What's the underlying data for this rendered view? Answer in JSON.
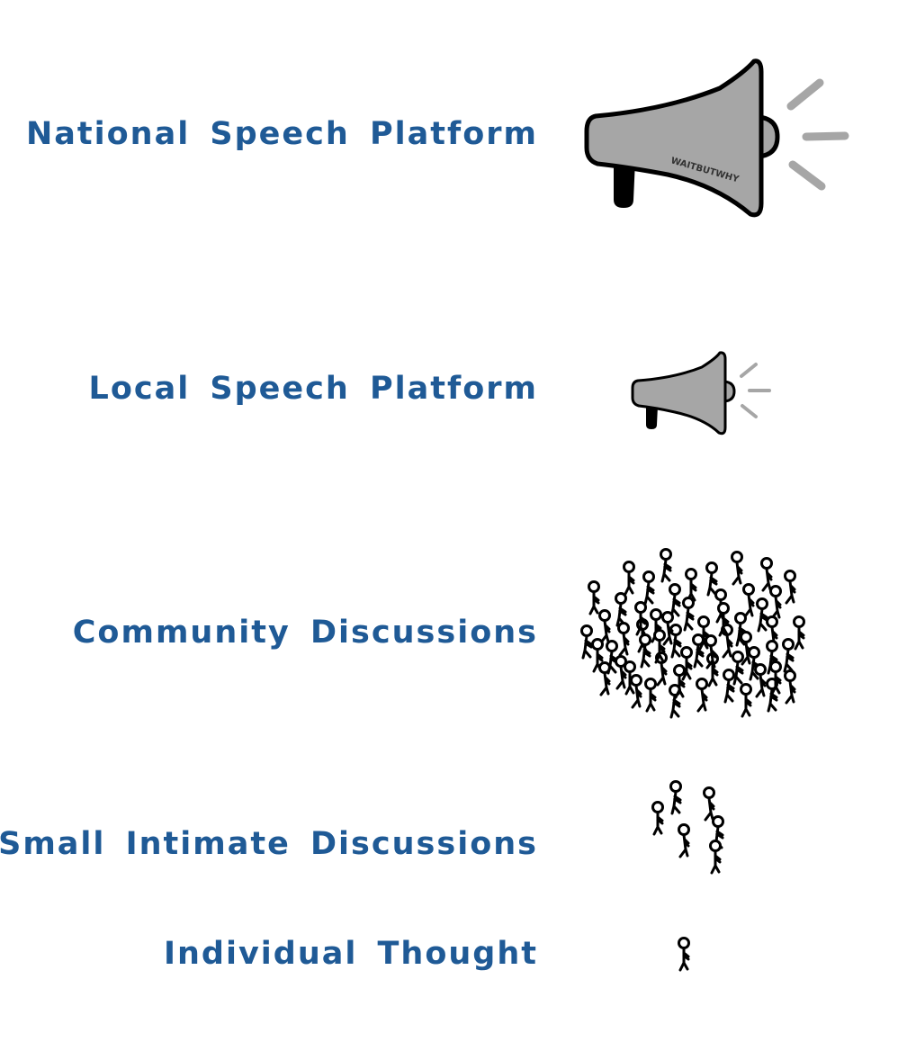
{
  "tiers": [
    {
      "label": "National Speech Platform",
      "icon": "large-megaphone-icon",
      "megaphone_text": "WAITBUTWHY"
    },
    {
      "label": "Local Speech Platform",
      "icon": "small-megaphone-icon"
    },
    {
      "label": "Community Discussions",
      "icon": "crowd-icon",
      "people_count": 58
    },
    {
      "label": "Small Intimate Discussions",
      "icon": "small-group-icon",
      "people_count": 6
    },
    {
      "label": "Individual Thought",
      "icon": "person-icon",
      "people_count": 1
    }
  ],
  "colors": {
    "label": "#1f5a96",
    "megaphone_fill": "#a6a6a6",
    "megaphone_outline": "#000000",
    "sound_lines": "#a6a6a6",
    "figure_stroke": "#000000",
    "background": "#ffffff"
  }
}
